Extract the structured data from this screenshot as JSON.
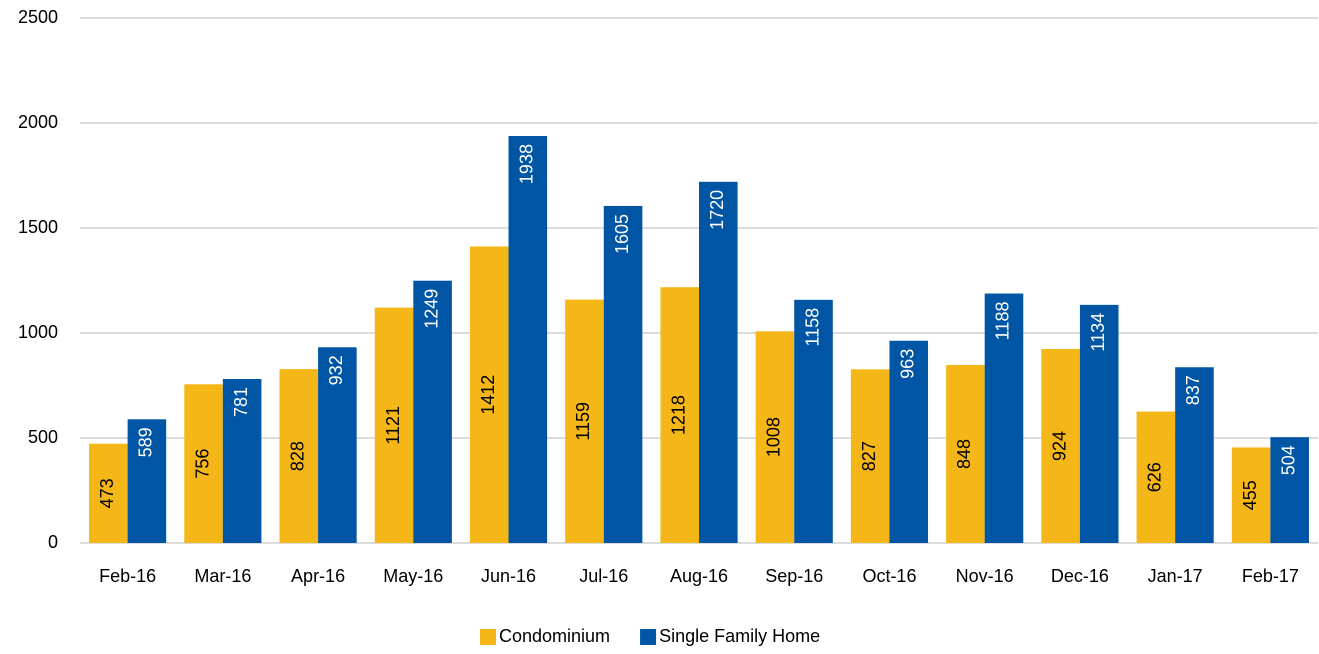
{
  "chart_data": {
    "type": "bar",
    "categories": [
      "Feb-16",
      "Mar-16",
      "Apr-16",
      "May-16",
      "Jun-16",
      "Jul-16",
      "Aug-16",
      "Sep-16",
      "Oct-16",
      "Nov-16",
      "Dec-16",
      "Jan-17",
      "Feb-17"
    ],
    "series": [
      {
        "name": "Condominium",
        "color": "#f5b618",
        "values": [
          473,
          756,
          828,
          1121,
          1412,
          1159,
          1218,
          1008,
          827,
          848,
          924,
          626,
          455
        ]
      },
      {
        "name": "Single Family Home",
        "color": "#0055a5",
        "values": [
          589,
          781,
          932,
          1249,
          1938,
          1605,
          1720,
          1158,
          963,
          1188,
          1134,
          837,
          504
        ]
      }
    ],
    "ylim": [
      0,
      2500
    ],
    "yticks": [
      0,
      500,
      1000,
      1500,
      2000,
      2500
    ],
    "grid": true,
    "legend": "bottom"
  }
}
